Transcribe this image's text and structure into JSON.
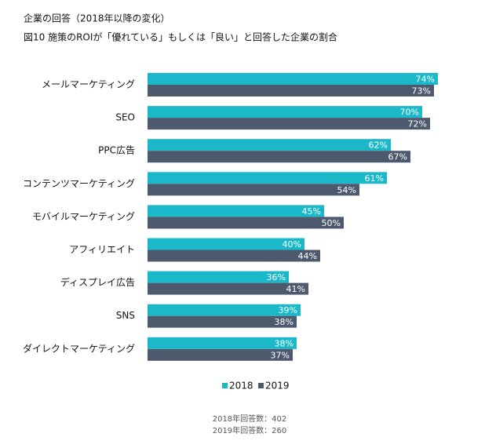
{
  "chart_data": {
    "type": "barh",
    "title": "企業の回答（2018年以降の変化）",
    "subtitle": "図10 施策のROIが「優れている」もしくは「良い」と回答した企業の割合",
    "categories": [
      "メールマーケティング",
      "SEO",
      "PPC広告",
      "コンテンツマーケティング",
      "モバイルマーケティング",
      "アフィリエイト",
      "ディスプレイ広告",
      "SNS",
      "ダイレクトマーケティング"
    ],
    "series": [
      {
        "name": "2018",
        "color": "#1bb8c9",
        "values": [
          74,
          70,
          62,
          61,
          45,
          40,
          36,
          39,
          38
        ],
        "value_labels": [
          "74%",
          "70%",
          "62%",
          "61%",
          "45%",
          "40%",
          "36%",
          "39%",
          "38%"
        ]
      },
      {
        "name": "2019",
        "color": "#4d5a6e",
        "values": [
          73,
          72,
          67,
          54,
          50,
          44,
          41,
          38,
          37
        ],
        "value_labels": [
          "73%",
          "72%",
          "67%",
          "54%",
          "50%",
          "44%",
          "41%",
          "38%",
          "37%"
        ]
      }
    ],
    "xlim": [
      0,
      100
    ],
    "notes": [
      "2018年回答数：402",
      "2019年回答数：260"
    ]
  }
}
